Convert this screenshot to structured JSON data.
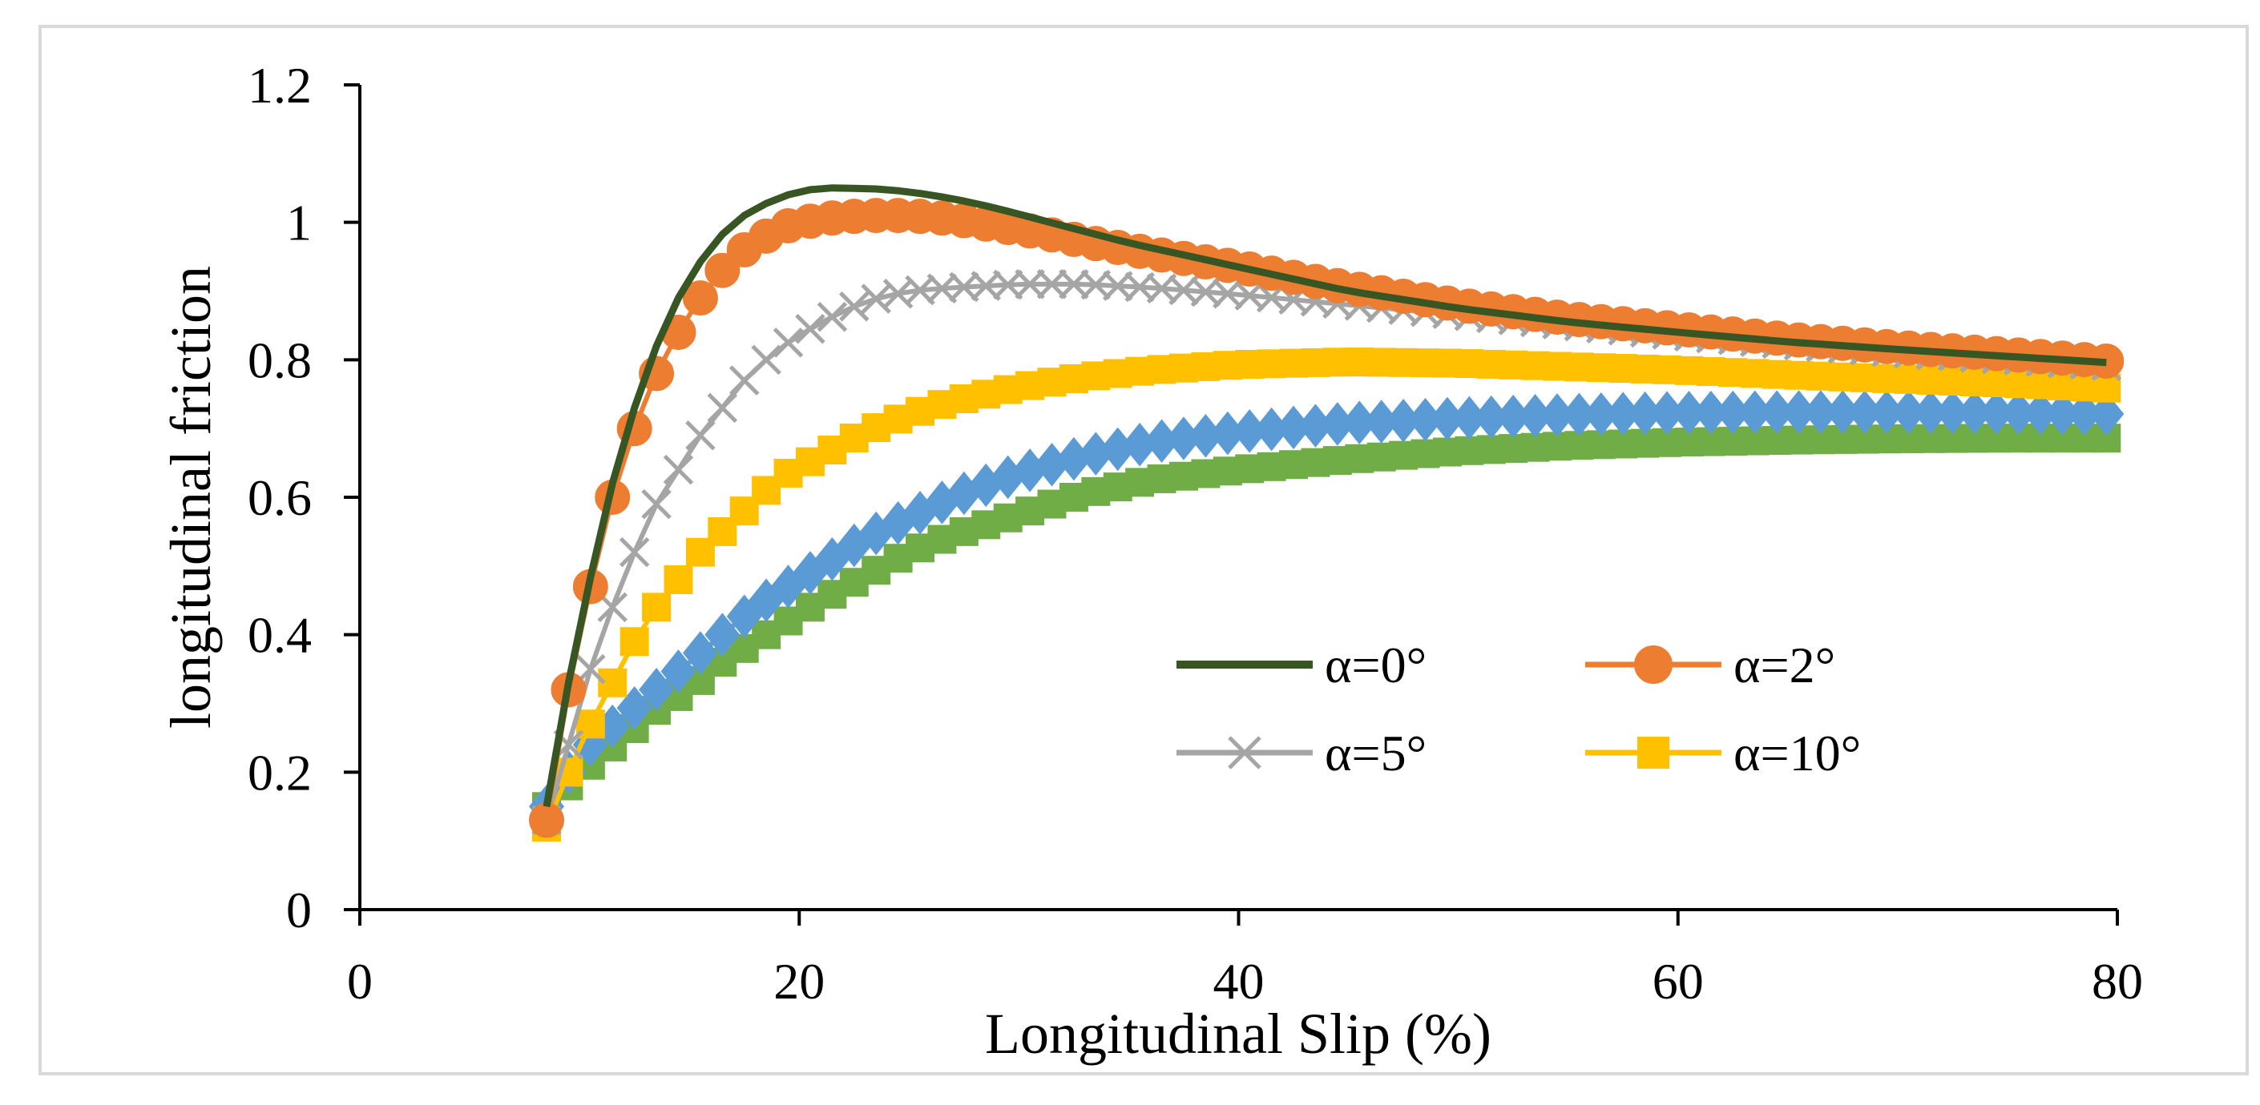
{
  "chart_data": {
    "type": "line",
    "title": "",
    "xlabel": "Longitudinal Slip (%)",
    "ylabel": "longitudinal friction",
    "xlim": [
      0,
      80
    ],
    "ylim": [
      0,
      1.2
    ],
    "xticks": [
      "0",
      "20",
      "40",
      "60",
      "80"
    ],
    "yticks": [
      "0",
      "0.2",
      "0.4",
      "0.6",
      "0.8",
      "1",
      "1.2"
    ],
    "grid": false,
    "legend_position": "lower-center-right inside",
    "x_range": [
      8.5,
      80
    ],
    "x_step": 1,
    "series": [
      {
        "name": "α=0°",
        "color": "#375623",
        "marker": "none",
        "in_legend": true,
        "points": [
          [
            8.5,
            0.15
          ],
          [
            9.5,
            0.33
          ],
          [
            11,
            0.56
          ],
          [
            12,
            0.68
          ],
          [
            13,
            0.78
          ],
          [
            14,
            0.86
          ],
          [
            15,
            0.92
          ],
          [
            16,
            0.965
          ],
          [
            17,
            1.0
          ],
          [
            18,
            1.02
          ],
          [
            19,
            1.035
          ],
          [
            20,
            1.045
          ],
          [
            21,
            1.05
          ],
          [
            22,
            1.05
          ],
          [
            24,
            1.048
          ],
          [
            26,
            1.04
          ],
          [
            28,
            1.028
          ],
          [
            30,
            1.012
          ],
          [
            32,
            0.995
          ],
          [
            35,
            0.97
          ],
          [
            40,
            0.935
          ],
          [
            45,
            0.9
          ],
          [
            50,
            0.875
          ],
          [
            55,
            0.855
          ],
          [
            60,
            0.84
          ],
          [
            65,
            0.826
          ],
          [
            70,
            0.815
          ],
          [
            75,
            0.805
          ],
          [
            80,
            0.795
          ]
        ]
      },
      {
        "name": "α=2°",
        "color": "#ED7D31",
        "marker": "circle",
        "in_legend": true,
        "points": [
          [
            8.5,
            0.13
          ],
          [
            9.5,
            0.32
          ],
          [
            10.5,
            0.47
          ],
          [
            11.5,
            0.6
          ],
          [
            12.5,
            0.7
          ],
          [
            13.5,
            0.78
          ],
          [
            14.5,
            0.84
          ],
          [
            15.5,
            0.89
          ],
          [
            16.5,
            0.93
          ],
          [
            17.5,
            0.96
          ],
          [
            18.5,
            0.98
          ],
          [
            19.5,
            0.995
          ],
          [
            21,
            1.005
          ],
          [
            23,
            1.01
          ],
          [
            25,
            1.01
          ],
          [
            27,
            1.005
          ],
          [
            29,
            0.995
          ],
          [
            31,
            0.985
          ],
          [
            33,
            0.972
          ],
          [
            36,
            0.955
          ],
          [
            40,
            0.935
          ],
          [
            45,
            0.905
          ],
          [
            50,
            0.88
          ],
          [
            55,
            0.86
          ],
          [
            60,
            0.845
          ],
          [
            65,
            0.83
          ],
          [
            70,
            0.818
          ],
          [
            75,
            0.808
          ],
          [
            80,
            0.797
          ]
        ]
      },
      {
        "name": "α=5°",
        "color": "#A5A5A5",
        "marker": "x",
        "in_legend": true,
        "points": [
          [
            8.5,
            0.13
          ],
          [
            9.5,
            0.24
          ],
          [
            10.5,
            0.35
          ],
          [
            11.5,
            0.44
          ],
          [
            12.5,
            0.52
          ],
          [
            13.5,
            0.59
          ],
          [
            14.5,
            0.64
          ],
          [
            15.5,
            0.69
          ],
          [
            16.5,
            0.73
          ],
          [
            17.5,
            0.77
          ],
          [
            18.5,
            0.8
          ],
          [
            19.5,
            0.825
          ],
          [
            21,
            0.855
          ],
          [
            23,
            0.885
          ],
          [
            25,
            0.9
          ],
          [
            27,
            0.905
          ],
          [
            30,
            0.91
          ],
          [
            33,
            0.91
          ],
          [
            36,
            0.905
          ],
          [
            40,
            0.895
          ],
          [
            45,
            0.88
          ],
          [
            50,
            0.865
          ],
          [
            55,
            0.85
          ],
          [
            60,
            0.835
          ],
          [
            65,
            0.822
          ],
          [
            70,
            0.81
          ],
          [
            75,
            0.8
          ],
          [
            80,
            0.79
          ]
        ]
      },
      {
        "name": "α=10°",
        "color": "#FFC000",
        "marker": "square",
        "in_legend": true,
        "points": [
          [
            8.5,
            0.12
          ],
          [
            9.5,
            0.2
          ],
          [
            10.5,
            0.27
          ],
          [
            11.5,
            0.33
          ],
          [
            12.5,
            0.39
          ],
          [
            13.5,
            0.44
          ],
          [
            14.5,
            0.48
          ],
          [
            15.5,
            0.52
          ],
          [
            16.5,
            0.55
          ],
          [
            17.5,
            0.58
          ],
          [
            18.5,
            0.61
          ],
          [
            19.5,
            0.635
          ],
          [
            21,
            0.66
          ],
          [
            23,
            0.695
          ],
          [
            25,
            0.72
          ],
          [
            27,
            0.74
          ],
          [
            30,
            0.76
          ],
          [
            33,
            0.775
          ],
          [
            36,
            0.785
          ],
          [
            40,
            0.793
          ],
          [
            45,
            0.797
          ],
          [
            50,
            0.795
          ],
          [
            55,
            0.79
          ],
          [
            60,
            0.785
          ],
          [
            65,
            0.778
          ],
          [
            70,
            0.772
          ],
          [
            75,
            0.766
          ],
          [
            80,
            0.758
          ]
        ]
      },
      {
        "name": "",
        "color": "#5B9BD5",
        "marker": "diamond",
        "in_legend": false,
        "points": [
          [
            8.5,
            0.15
          ],
          [
            9.5,
            0.2
          ],
          [
            10.5,
            0.24
          ],
          [
            12,
            0.28
          ],
          [
            13.5,
            0.32
          ],
          [
            15,
            0.36
          ],
          [
            16.5,
            0.4
          ],
          [
            18,
            0.44
          ],
          [
            19.5,
            0.47
          ],
          [
            21,
            0.5
          ],
          [
            23,
            0.54
          ],
          [
            25,
            0.57
          ],
          [
            27,
            0.6
          ],
          [
            30,
            0.635
          ],
          [
            33,
            0.66
          ],
          [
            36,
            0.68
          ],
          [
            40,
            0.695
          ],
          [
            45,
            0.708
          ],
          [
            50,
            0.715
          ],
          [
            55,
            0.72
          ],
          [
            60,
            0.723
          ],
          [
            65,
            0.724
          ],
          [
            70,
            0.724
          ],
          [
            75,
            0.723
          ],
          [
            80,
            0.721
          ]
        ]
      },
      {
        "name": "",
        "color": "#70AD47",
        "marker": "square",
        "in_legend": false,
        "points": [
          [
            8.5,
            0.15
          ],
          [
            9.5,
            0.18
          ],
          [
            10.5,
            0.21
          ],
          [
            12,
            0.25
          ],
          [
            13.5,
            0.29
          ],
          [
            15,
            0.32
          ],
          [
            16.5,
            0.36
          ],
          [
            18,
            0.39
          ],
          [
            19.5,
            0.42
          ],
          [
            21,
            0.45
          ],
          [
            23,
            0.485
          ],
          [
            25,
            0.52
          ],
          [
            27,
            0.545
          ],
          [
            30,
            0.575
          ],
          [
            33,
            0.605
          ],
          [
            36,
            0.625
          ],
          [
            40,
            0.64
          ],
          [
            45,
            0.655
          ],
          [
            50,
            0.667
          ],
          [
            55,
            0.675
          ],
          [
            60,
            0.68
          ],
          [
            65,
            0.683
          ],
          [
            70,
            0.685
          ],
          [
            75,
            0.686
          ],
          [
            80,
            0.686
          ]
        ]
      }
    ]
  }
}
